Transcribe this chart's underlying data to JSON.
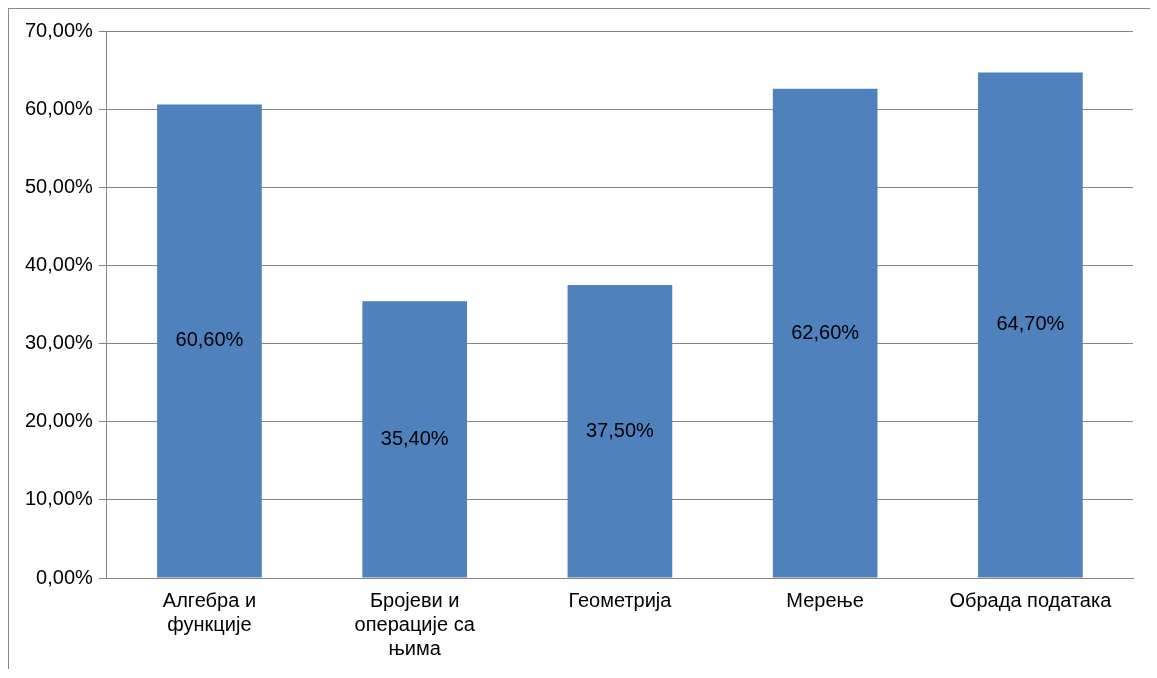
{
  "chart_data": {
    "type": "bar",
    "categories": [
      "Алгебра и функције",
      "Бројеви и операције са њима",
      "Геометрија",
      "Мерење",
      "Обрада података"
    ],
    "values": [
      60.6,
      35.4,
      37.5,
      62.6,
      64.7
    ],
    "value_labels": [
      "60,60%",
      "35,40%",
      "37,50%",
      "62,60%",
      "64,70%"
    ],
    "color": "#4f81bd",
    "ylim": [
      0,
      70
    ],
    "yticks": [
      {
        "value": 0,
        "label": "0,00%"
      },
      {
        "value": 10,
        "label": "10,00%"
      },
      {
        "value": 20,
        "label": "20,00%"
      },
      {
        "value": 30,
        "label": "30,00%"
      },
      {
        "value": 40,
        "label": "40,00%"
      },
      {
        "value": 50,
        "label": "50,00%"
      },
      {
        "value": 60,
        "label": "60,00%"
      },
      {
        "value": 70,
        "label": "70,00%"
      }
    ],
    "grid": "y",
    "legend": false
  }
}
